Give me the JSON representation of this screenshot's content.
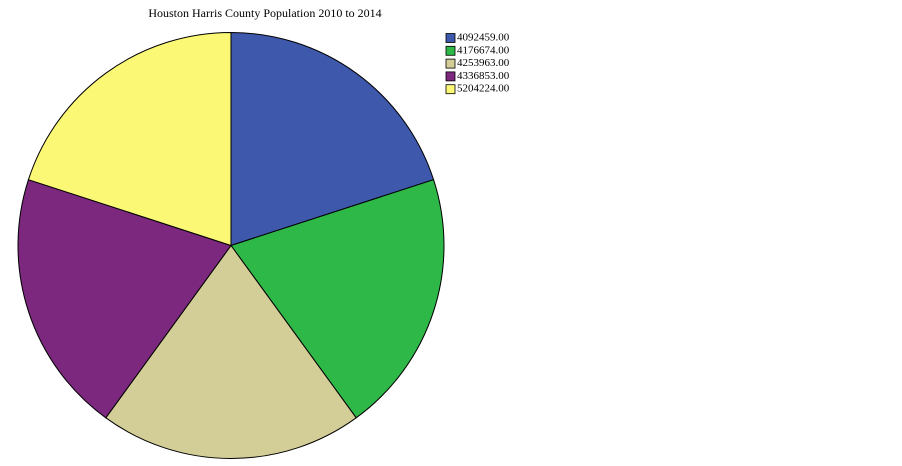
{
  "chart_data": {
    "type": "pie",
    "title": "Houston Harris County Population 2010 to 2014",
    "categories": [
      "4092459.00",
      "4176674.00",
      "4253963.00",
      "4336853.00",
      "5204224.00"
    ],
    "values": [
      1,
      1,
      1,
      1,
      1
    ],
    "colors": [
      "#3e58ac",
      "#2eb848",
      "#d3ce97",
      "#7b287e",
      "#fbf876"
    ],
    "legend": "top-right"
  }
}
